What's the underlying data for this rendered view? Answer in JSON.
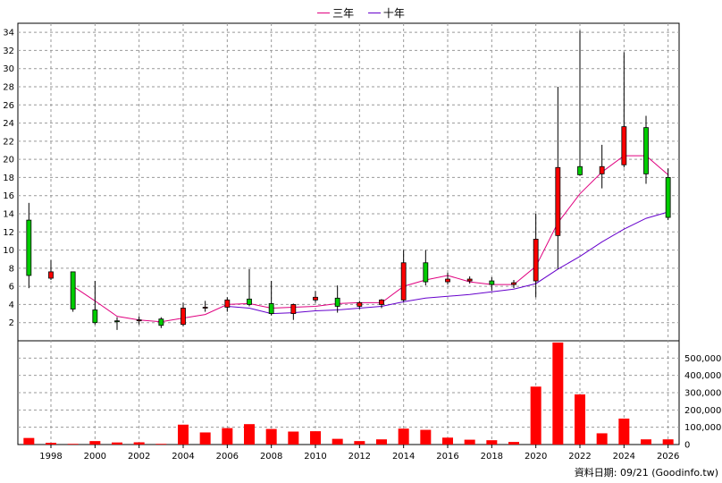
{
  "chart_data": {
    "type": "candlestick+bar",
    "title": "",
    "legend": [
      {
        "name": "三年",
        "color": "#e0007f"
      },
      {
        "name": "十年",
        "color": "#6600cc"
      }
    ],
    "price_axis": {
      "ylim": [
        0,
        35
      ],
      "ticks": [
        2,
        4,
        6,
        8,
        10,
        12,
        14,
        16,
        18,
        20,
        22,
        24,
        26,
        28,
        30,
        32,
        34
      ]
    },
    "volume_axis": {
      "ylim": [
        0,
        600000
      ],
      "ticks": [
        0,
        100000,
        200000,
        300000,
        400000,
        500000
      ],
      "tick_labels": [
        "0",
        "100,000",
        "200,000",
        "300,000",
        "400,000",
        "500,000"
      ]
    },
    "x_axis": {
      "range": [
        1996.5,
        2026.5
      ],
      "ticks": [
        1998,
        2000,
        2002,
        2004,
        2006,
        2008,
        2010,
        2012,
        2014,
        2016,
        2018,
        2020,
        2022,
        2024,
        2026
      ]
    },
    "candles": [
      {
        "year": 1997,
        "open": 7.2,
        "close": 13.3,
        "high": 15.2,
        "low": 5.8
      },
      {
        "year": 1998,
        "open": 7.6,
        "close": 6.9,
        "high": 8.9,
        "low": 6.7
      },
      {
        "year": 1999,
        "open": 3.5,
        "close": 7.6,
        "high": 7.6,
        "low": 3.2
      },
      {
        "year": 2000,
        "open": 2.0,
        "close": 3.4,
        "high": 6.6,
        "low": 1.8
      },
      {
        "year": 2001,
        "open": 2.1,
        "close": 2.2,
        "high": 2.6,
        "low": 1.2
      },
      {
        "year": 2002,
        "open": 2.3,
        "close": 2.2,
        "high": 2.7,
        "low": 1.8
      },
      {
        "year": 2003,
        "open": 1.7,
        "close": 2.4,
        "high": 2.6,
        "low": 1.4
      },
      {
        "year": 2004,
        "open": 3.6,
        "close": 1.8,
        "high": 4.2,
        "low": 1.6
      },
      {
        "year": 2005,
        "open": 3.7,
        "close": 3.6,
        "high": 4.4,
        "low": 3.2
      },
      {
        "year": 2006,
        "open": 4.5,
        "close": 3.7,
        "high": 4.8,
        "low": 3.2
      },
      {
        "year": 2007,
        "open": 4.0,
        "close": 4.6,
        "high": 7.9,
        "low": 3.8
      },
      {
        "year": 2008,
        "open": 3.0,
        "close": 4.1,
        "high": 6.6,
        "low": 2.8
      },
      {
        "year": 2009,
        "open": 4.0,
        "close": 3.0,
        "high": 4.1,
        "low": 2.3
      },
      {
        "year": 2010,
        "open": 4.8,
        "close": 4.5,
        "high": 5.5,
        "low": 4.2
      },
      {
        "year": 2011,
        "open": 3.8,
        "close": 4.7,
        "high": 6.1,
        "low": 3.1
      },
      {
        "year": 2012,
        "open": 4.2,
        "close": 3.8,
        "high": 4.4,
        "low": 3.5
      },
      {
        "year": 2013,
        "open": 4.5,
        "close": 4.0,
        "high": 4.6,
        "low": 3.6
      },
      {
        "year": 2014,
        "open": 8.6,
        "close": 4.5,
        "high": 10.0,
        "low": 4.3
      },
      {
        "year": 2015,
        "open": 6.5,
        "close": 8.6,
        "high": 10.0,
        "low": 6.1
      },
      {
        "year": 2016,
        "open": 6.8,
        "close": 6.5,
        "high": 7.5,
        "low": 6.2
      },
      {
        "year": 2017,
        "open": 6.8,
        "close": 6.6,
        "high": 7.1,
        "low": 6.3
      },
      {
        "year": 2018,
        "open": 6.2,
        "close": 6.6,
        "high": 7.0,
        "low": 5.5
      },
      {
        "year": 2019,
        "open": 6.4,
        "close": 6.2,
        "high": 6.7,
        "low": 5.8
      },
      {
        "year": 2020,
        "open": 11.2,
        "close": 6.6,
        "high": 14.0,
        "low": 4.8
      },
      {
        "year": 2021,
        "open": 19.1,
        "close": 11.6,
        "high": 28.0,
        "low": 7.9
      },
      {
        "year": 2022,
        "open": 18.3,
        "close": 19.2,
        "high": 34.2,
        "low": 18.2
      },
      {
        "year": 2023,
        "open": 19.2,
        "close": 18.4,
        "high": 21.6,
        "low": 16.8
      },
      {
        "year": 2024,
        "open": 23.6,
        "close": 19.4,
        "high": 31.8,
        "low": 19.1
      },
      {
        "year": 2025,
        "open": 18.4,
        "close": 23.5,
        "high": 24.8,
        "low": 17.3
      },
      {
        "year": 2026,
        "open": 13.6,
        "close": 18.0,
        "high": 19.0,
        "low": 13.3
      }
    ],
    "series": [
      {
        "name": "三年",
        "x": [
          1999,
          2000,
          2001,
          2002,
          2003,
          2004,
          2005,
          2006,
          2007,
          2008,
          2009,
          2010,
          2011,
          2012,
          2013,
          2014,
          2015,
          2016,
          2017,
          2018,
          2019,
          2020,
          2021,
          2022,
          2023,
          2024,
          2025,
          2026
        ],
        "values": [
          6.0,
          4.4,
          2.7,
          2.3,
          2.1,
          2.5,
          2.9,
          4.0,
          4.1,
          3.6,
          3.7,
          3.8,
          4.1,
          4.2,
          4.2,
          6.0,
          6.7,
          7.2,
          6.5,
          6.2,
          6.2,
          8.2,
          13.0,
          16.2,
          18.6,
          20.4,
          20.4,
          18.3
        ]
      },
      {
        "name": "十年",
        "x": [
          2006,
          2007,
          2008,
          2009,
          2010,
          2011,
          2012,
          2013,
          2014,
          2015,
          2016,
          2017,
          2018,
          2019,
          2020,
          2021,
          2022,
          2023,
          2024,
          2025,
          2026
        ],
        "values": [
          3.8,
          3.6,
          3.0,
          3.1,
          3.3,
          3.4,
          3.6,
          3.8,
          4.3,
          4.7,
          4.9,
          5.1,
          5.4,
          5.7,
          6.3,
          7.9,
          9.3,
          10.9,
          12.3,
          13.5,
          14.2
        ]
      }
    ],
    "volume": {
      "x": [
        1997,
        1998,
        1999,
        2000,
        2001,
        2002,
        2003,
        2004,
        2005,
        2006,
        2007,
        2008,
        2009,
        2010,
        2011,
        2012,
        2013,
        2014,
        2015,
        2016,
        2017,
        2018,
        2019,
        2020,
        2021,
        2022,
        2023,
        2024,
        2025,
        2026
      ],
      "values": [
        38000,
        10000,
        4000,
        20000,
        12000,
        13000,
        4000,
        115000,
        70000,
        95000,
        118000,
        90000,
        75000,
        77000,
        33000,
        20000,
        30000,
        92000,
        85000,
        40000,
        28000,
        25000,
        15000,
        335000,
        590000,
        290000,
        65000,
        150000,
        30000,
        30000
      ]
    },
    "colors": {
      "up": "#ff0000",
      "down": "#00cc00",
      "volume": "#ff0000",
      "grid": "#999999"
    },
    "grid": true,
    "legend_position": "top-center"
  },
  "credit": "資料日期: 09/21 (Goodinfo.tw)"
}
